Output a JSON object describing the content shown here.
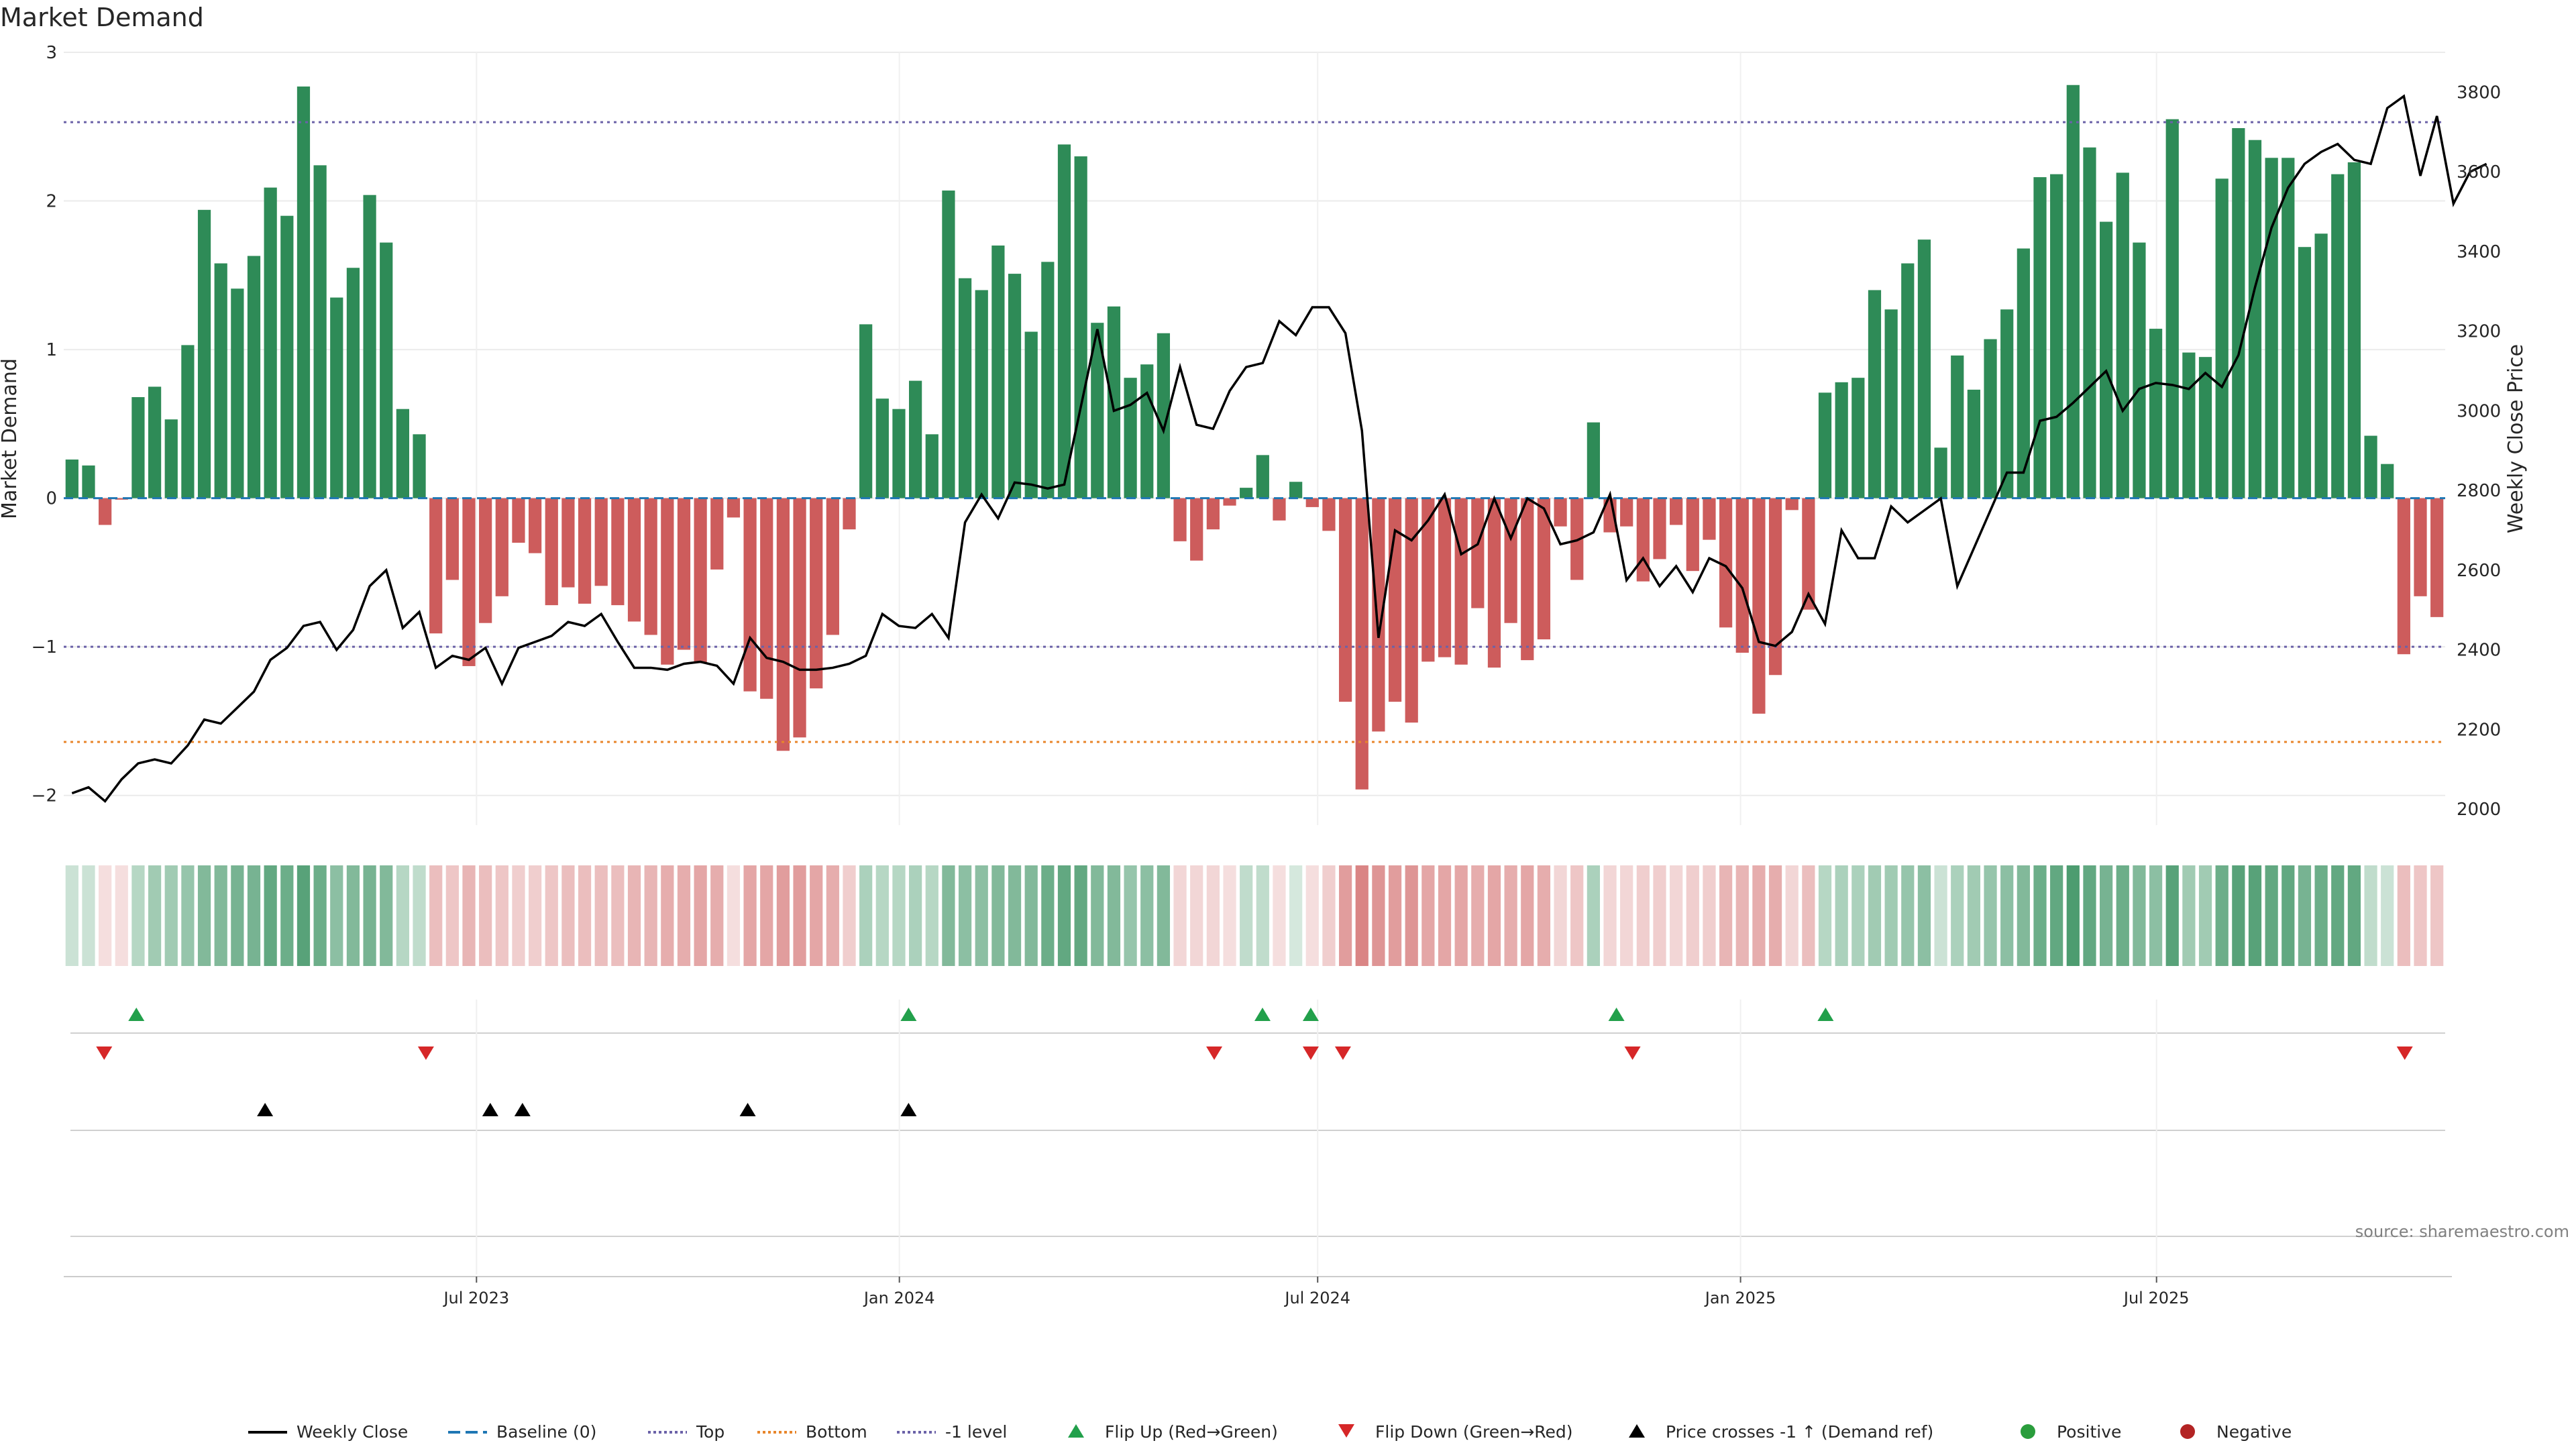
{
  "title": "Market Demand",
  "source": "source: sharemaestro.com",
  "chart_data": {
    "type": "bar",
    "title": "Market Demand",
    "ylabel": "Market Demand",
    "y2label": "Weekly Close Price",
    "ylim": [
      -2.2,
      3.0
    ],
    "y2lim": [
      1960,
      3900
    ],
    "yticks": [
      3,
      2,
      1,
      0,
      -1,
      -2
    ],
    "ytick_labels": [
      "3",
      "2",
      "1",
      "0",
      "−1",
      "−2"
    ],
    "y2ticks": [
      3800,
      3600,
      3400,
      3200,
      3000,
      2800,
      2600,
      2400,
      2200,
      2000
    ],
    "x_start": "2023-01-06",
    "x_end": "2025-10-31",
    "xticks": [
      {
        "date": "2023-07-01",
        "label": "Jul 2023"
      },
      {
        "date": "2024-01-01",
        "label": "Jan 2024"
      },
      {
        "date": "2024-07-01",
        "label": "Jul 2024"
      },
      {
        "date": "2025-01-01",
        "label": "Jan 2025"
      },
      {
        "date": "2025-07-01",
        "label": "Jul 2025"
      }
    ],
    "reference_lines": [
      {
        "name": "Baseline (0)",
        "value": 0,
        "color": "#1f77b4",
        "style": "dashed"
      },
      {
        "name": "Top",
        "value": 2.53,
        "color": "#6b62a8",
        "style": "dotted"
      },
      {
        "name": "Bottom",
        "value": -1.64,
        "color": "#e8862b",
        "style": "dotted"
      },
      {
        "name": "-1 level",
        "value": -1.0,
        "color": "#6b62a8",
        "style": "dotted"
      }
    ],
    "colors": {
      "positive": "#2e8b57",
      "negative": "#cd5c5c",
      "close": "#000000",
      "flip_up": "#22a04b",
      "flip_down": "#d62728",
      "cross": "#000000",
      "legend_positive": "#2a9d3c",
      "legend_negative": "#b32424"
    },
    "demand": [
      0.26,
      0.22,
      -0.18,
      -0.01,
      0.68,
      0.75,
      0.53,
      1.03,
      1.94,
      1.58,
      1.41,
      1.63,
      2.09,
      1.9,
      2.77,
      2.24,
      1.35,
      1.55,
      2.04,
      1.72,
      0.6,
      0.43,
      -0.91,
      -0.55,
      -1.13,
      -0.84,
      -0.66,
      -0.3,
      -0.37,
      -0.72,
      -0.6,
      -0.71,
      -0.59,
      -0.72,
      -0.83,
      -0.92,
      -1.12,
      -1.02,
      -1.11,
      -0.48,
      -0.13,
      -1.3,
      -1.35,
      -1.7,
      -1.61,
      -1.28,
      -0.92,
      -0.21,
      1.17,
      0.67,
      0.6,
      0.79,
      0.43,
      2.07,
      1.48,
      1.4,
      1.7,
      1.51,
      1.12,
      1.59,
      2.38,
      2.3,
      1.18,
      1.29,
      0.81,
      0.9,
      1.11,
      -0.29,
      -0.42,
      -0.21,
      -0.05,
      0.07,
      0.29,
      -0.15,
      0.11,
      -0.06,
      -0.22,
      -1.37,
      -1.96,
      -1.57,
      -1.37,
      -1.51,
      -1.1,
      -1.07,
      -1.12,
      -0.74,
      -1.14,
      -0.84,
      -1.09,
      -0.95,
      -0.19,
      -0.55,
      0.51,
      -0.23,
      -0.19,
      -0.56,
      -0.41,
      -0.18,
      -0.49,
      -0.28,
      -0.87,
      -1.04,
      -1.45,
      -1.19,
      -0.08,
      -0.75,
      0.71,
      0.78,
      0.81,
      1.4,
      1.27,
      1.58,
      1.74,
      0.34,
      0.96,
      0.73,
      1.07,
      1.27,
      1.68,
      2.16,
      2.18,
      2.78,
      2.36,
      1.86,
      2.19,
      1.72,
      1.14,
      2.55,
      0.98,
      0.95,
      2.15,
      2.49,
      2.41,
      2.29,
      2.29,
      1.69,
      1.78,
      2.18,
      2.26,
      0.42,
      0.23,
      -1.05,
      -0.66,
      -0.8
    ],
    "close": [
      2040,
      2055,
      2020,
      2075,
      2115,
      2125,
      2115,
      2160,
      2225,
      2215,
      2255,
      2295,
      2375,
      2405,
      2460,
      2470,
      2400,
      2450,
      2560,
      2600,
      2455,
      2495,
      2355,
      2385,
      2375,
      2405,
      2315,
      2405,
      2420,
      2435,
      2470,
      2460,
      2490,
      2420,
      2355,
      2355,
      2350,
      2365,
      2370,
      2360,
      2315,
      2430,
      2380,
      2370,
      2350,
      2350,
      2355,
      2365,
      2385,
      2490,
      2460,
      2455,
      2490,
      2430,
      2720,
      2790,
      2730,
      2820,
      2815,
      2805,
      2815,
      3010,
      3205,
      3000,
      3015,
      3045,
      2950,
      3110,
      2965,
      2955,
      3050,
      3110,
      3120,
      3225,
      3190,
      3260,
      3260,
      3195,
      2950,
      2430,
      2700,
      2675,
      2725,
      2790,
      2640,
      2665,
      2780,
      2680,
      2780,
      2755,
      2665,
      2675,
      2695,
      2790,
      2575,
      2630,
      2560,
      2610,
      2545,
      2630,
      2610,
      2555,
      2420,
      2410,
      2445,
      2540,
      2465,
      2700,
      2630,
      2630,
      2760,
      2720,
      2750,
      2780,
      2560,
      2655,
      2750,
      2845,
      2845,
      2975,
      2985,
      3020,
      3060,
      3100,
      3000,
      3055,
      3070,
      3065,
      3055,
      3095,
      3060,
      3140,
      3310,
      3460,
      3560,
      3620,
      3650,
      3670,
      3630,
      3620,
      3760,
      3790,
      3590,
      3740,
      3520,
      3600,
      3620
    ],
    "color_strip_opacity": [
      0.25,
      0.25,
      0.2,
      0.2,
      0.35,
      0.45,
      0.45,
      0.5,
      0.6,
      0.6,
      0.65,
      0.65,
      0.75,
      0.7,
      0.8,
      0.7,
      0.55,
      0.6,
      0.65,
      0.6,
      0.35,
      0.3,
      0.4,
      0.35,
      0.45,
      0.4,
      0.35,
      0.3,
      0.3,
      0.35,
      0.4,
      0.4,
      0.4,
      0.4,
      0.45,
      0.45,
      0.5,
      0.5,
      0.55,
      0.5,
      0.2,
      0.55,
      0.55,
      0.6,
      0.6,
      0.55,
      0.5,
      0.3,
      0.4,
      0.35,
      0.35,
      0.4,
      0.35,
      0.6,
      0.55,
      0.55,
      0.6,
      0.6,
      0.6,
      0.7,
      0.75,
      0.75,
      0.6,
      0.6,
      0.5,
      0.55,
      0.6,
      0.25,
      0.25,
      0.25,
      0.2,
      0.3,
      0.3,
      0.2,
      0.2,
      0.2,
      0.3,
      0.6,
      0.75,
      0.65,
      0.6,
      0.65,
      0.55,
      0.55,
      0.55,
      0.5,
      0.55,
      0.5,
      0.55,
      0.5,
      0.25,
      0.35,
      0.4,
      0.25,
      0.25,
      0.3,
      0.3,
      0.25,
      0.3,
      0.3,
      0.45,
      0.45,
      0.5,
      0.5,
      0.25,
      0.4,
      0.35,
      0.4,
      0.4,
      0.45,
      0.45,
      0.5,
      0.55,
      0.25,
      0.4,
      0.45,
      0.5,
      0.55,
      0.6,
      0.7,
      0.75,
      0.85,
      0.75,
      0.65,
      0.7,
      0.6,
      0.55,
      0.8,
      0.45,
      0.45,
      0.7,
      0.8,
      0.8,
      0.75,
      0.75,
      0.65,
      0.7,
      0.75,
      0.75,
      0.3,
      0.25,
      0.4,
      0.35,
      0.35
    ],
    "flip_up": [
      "2023-02-03",
      "2024-01-05",
      "2024-06-07",
      "2024-06-28",
      "2024-11-08",
      "2025-02-07"
    ],
    "flip_down": [
      "2023-01-20",
      "2023-06-09",
      "2024-05-17",
      "2024-06-28",
      "2024-07-12",
      "2024-11-15",
      "2025-10-17"
    ],
    "price_crosses": [
      "2023-03-31",
      "2023-07-07",
      "2023-07-21",
      "2023-10-27",
      "2024-01-05"
    ],
    "legend": [
      {
        "label": "Weekly Close",
        "kind": "line",
        "color": "#000000",
        "dash": ""
      },
      {
        "label": "Baseline (0)",
        "kind": "line",
        "color": "#1f77b4",
        "dash": "18 8"
      },
      {
        "label": "Top",
        "kind": "line",
        "color": "#6b62a8",
        "dash": "4 4"
      },
      {
        "label": "Bottom",
        "kind": "line",
        "color": "#e8862b",
        "dash": "4 4"
      },
      {
        "label": "-1 level",
        "kind": "line",
        "color": "#6b62a8",
        "dash": "4 4"
      },
      {
        "label": "Flip Up (Red→Green)",
        "kind": "tri-up",
        "color": "#22a04b"
      },
      {
        "label": "Flip Down (Green→Red)",
        "kind": "tri-down",
        "color": "#d62728"
      },
      {
        "label": "Price crosses -1 ↑ (Demand ref)",
        "kind": "tri-up",
        "color": "#000000"
      },
      {
        "label": "Positive",
        "kind": "dot",
        "color": "#2a9d3c"
      },
      {
        "label": "Negative",
        "kind": "dot",
        "color": "#b32424"
      }
    ]
  }
}
